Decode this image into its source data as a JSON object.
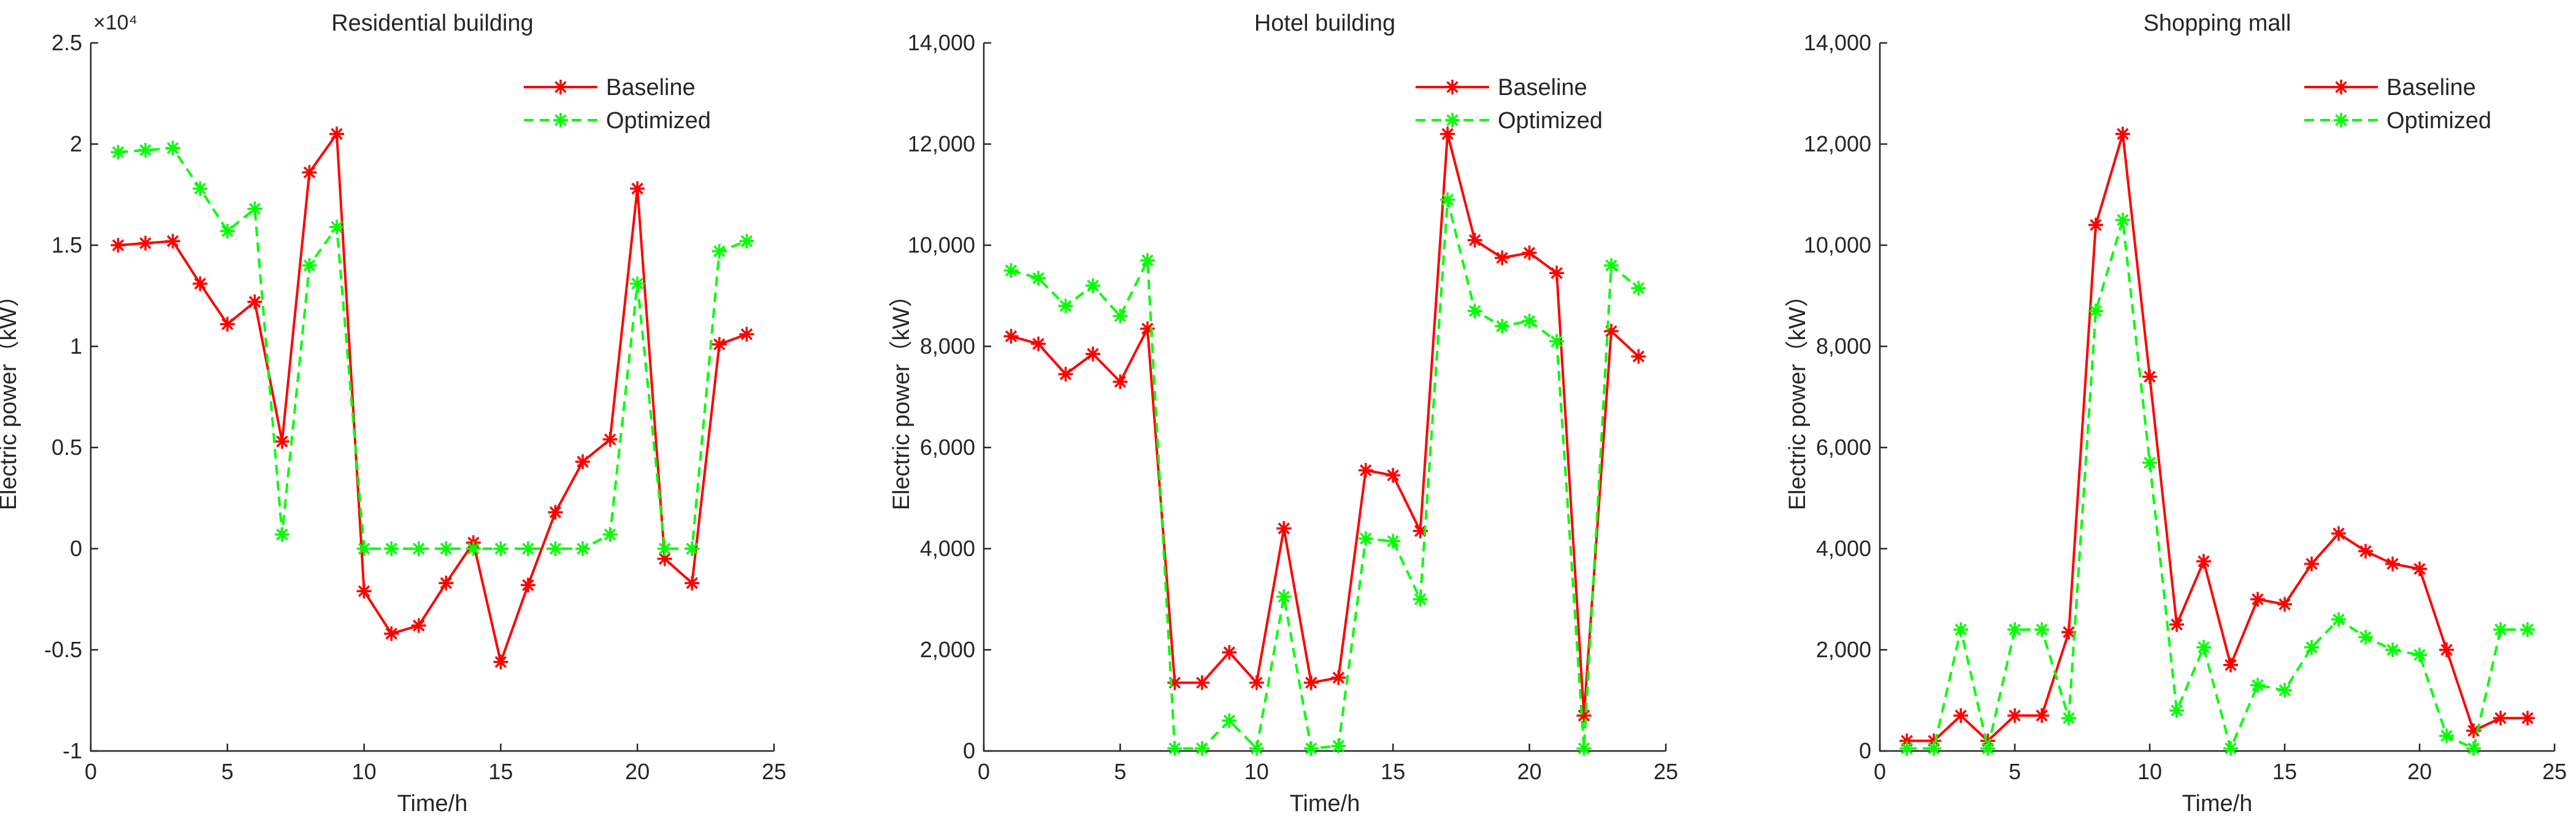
{
  "chart_data": [
    {
      "type": "line",
      "title": "Residential building",
      "xlabel": "Time/h",
      "ylabel": "Electric power（kW）",
      "xlim": [
        0,
        25
      ],
      "ylim": [
        -10000,
        25000
      ],
      "xticks": [
        0,
        5,
        10,
        15,
        20,
        25
      ],
      "xtick_labels": [
        "0",
        "5",
        "10",
        "15",
        "20",
        "25"
      ],
      "yticks": [
        -10000,
        -5000,
        0,
        5000,
        10000,
        15000,
        20000,
        25000
      ],
      "ytick_labels": [
        "-1",
        "-0.5",
        "0",
        "0.5",
        "1",
        "1.5",
        "2",
        "2.5"
      ],
      "y_multiplier": "×10⁴",
      "legend_position": "top-right",
      "grid": false,
      "x": [
        1,
        2,
        3,
        4,
        5,
        6,
        7,
        8,
        9,
        10,
        11,
        12,
        13,
        14,
        15,
        16,
        17,
        18,
        19,
        20,
        21,
        22,
        23,
        24
      ],
      "series": [
        {
          "name": "Baseline",
          "color": "#ff0000",
          "dash": "solid",
          "values": [
            15000,
            15100,
            15200,
            13100,
            11100,
            12200,
            5300,
            18600,
            20500,
            -2100,
            -4200,
            -3800,
            -1700,
            300,
            -5600,
            -1800,
            1800,
            4300,
            5400,
            17800,
            -500,
            -1700,
            10100,
            10600
          ]
        },
        {
          "name": "Optimized",
          "color": "#00ff00",
          "dash": "dashed",
          "values": [
            19600,
            19700,
            19800,
            17800,
            15700,
            16800,
            700,
            14000,
            15900,
            0,
            0,
            0,
            0,
            0,
            0,
            0,
            0,
            0,
            700,
            13100,
            0,
            0,
            14700,
            15200
          ]
        }
      ]
    },
    {
      "type": "line",
      "title": "Hotel building",
      "xlabel": "Time/h",
      "ylabel": "Electric power（kW）",
      "xlim": [
        0,
        25
      ],
      "ylim": [
        0,
        14000
      ],
      "xticks": [
        0,
        5,
        10,
        15,
        20,
        25
      ],
      "xtick_labels": [
        "0",
        "5",
        "10",
        "15",
        "20",
        "25"
      ],
      "yticks": [
        0,
        2000,
        4000,
        6000,
        8000,
        10000,
        12000,
        14000
      ],
      "ytick_labels": [
        "0",
        "2,000",
        "4,000",
        "6,000",
        "8,000",
        "10,000",
        "12,000",
        "14,000"
      ],
      "legend_position": "top-right",
      "grid": false,
      "x": [
        1,
        2,
        3,
        4,
        5,
        6,
        7,
        8,
        9,
        10,
        11,
        12,
        13,
        14,
        15,
        16,
        17,
        18,
        19,
        20,
        21,
        22,
        23,
        24
      ],
      "series": [
        {
          "name": "Baseline",
          "color": "#ff0000",
          "dash": "solid",
          "values": [
            8200,
            8050,
            7450,
            7850,
            7300,
            8350,
            1350,
            1350,
            1950,
            1350,
            4400,
            1350,
            1450,
            5550,
            5450,
            4350,
            12200,
            10100,
            9750,
            9850,
            9450,
            700,
            8300,
            7800
          ]
        },
        {
          "name": "Optimized",
          "color": "#00ff00",
          "dash": "dashed",
          "values": [
            9500,
            9350,
            8800,
            9200,
            8600,
            9700,
            50,
            50,
            600,
            50,
            3050,
            50,
            100,
            4200,
            4150,
            3000,
            10900,
            8700,
            8400,
            8500,
            8100,
            50,
            9600,
            9150
          ]
        }
      ]
    },
    {
      "type": "line",
      "title": "Shopping mall",
      "xlabel": "Time/h",
      "ylabel": "Electric power（kW）",
      "xlim": [
        0,
        25
      ],
      "ylim": [
        0,
        14000
      ],
      "xticks": [
        0,
        5,
        10,
        15,
        20,
        25
      ],
      "xtick_labels": [
        "0",
        "5",
        "10",
        "15",
        "20",
        "25"
      ],
      "yticks": [
        0,
        2000,
        4000,
        6000,
        8000,
        10000,
        12000,
        14000
      ],
      "ytick_labels": [
        "0",
        "2,000",
        "4,000",
        "6,000",
        "8,000",
        "10,000",
        "12,000",
        "14,000"
      ],
      "legend_position": "top-right",
      "grid": false,
      "x": [
        1,
        2,
        3,
        4,
        5,
        6,
        7,
        8,
        9,
        10,
        11,
        12,
        13,
        14,
        15,
        16,
        17,
        18,
        19,
        20,
        21,
        22,
        23,
        24
      ],
      "series": [
        {
          "name": "Baseline",
          "color": "#ff0000",
          "dash": "solid",
          "values": [
            200,
            200,
            700,
            200,
            700,
            700,
            2350,
            10400,
            12200,
            7400,
            2500,
            3750,
            1700,
            3000,
            2900,
            3700,
            4300,
            3950,
            3700,
            3600,
            2000,
            400,
            650,
            650
          ]
        },
        {
          "name": "Optimized",
          "color": "#00ff00",
          "dash": "dashed",
          "values": [
            50,
            50,
            2400,
            50,
            2400,
            2400,
            650,
            8700,
            10500,
            5700,
            800,
            2050,
            50,
            1300,
            1200,
            2050,
            2600,
            2250,
            2000,
            1900,
            300,
            50,
            2400,
            2400
          ]
        }
      ]
    }
  ]
}
